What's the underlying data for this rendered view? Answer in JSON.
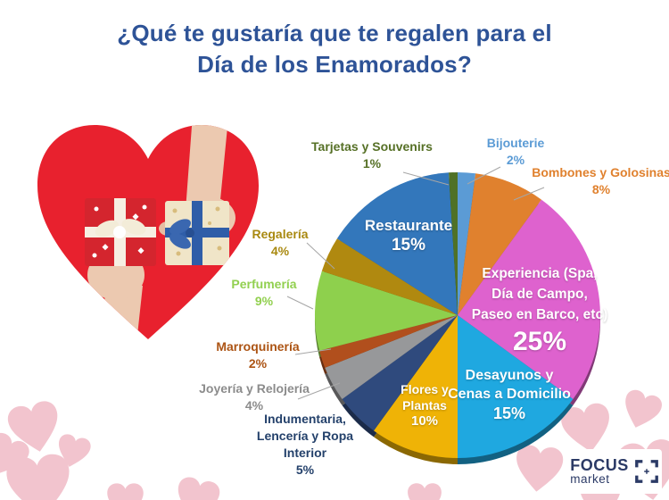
{
  "title": {
    "line1": "¿Qué te gustaría que te regalen para el",
    "line2": "Día de los Enamorados?",
    "color": "#2E5397"
  },
  "chart_data": {
    "type": "pie",
    "title": "¿Qué te gustaría que te regalen para el Día de los Enamorados?",
    "units": "percent",
    "total": 100,
    "start_angle_deg": 0,
    "direction": "clockwise",
    "legend_position": "none",
    "slices": [
      {
        "id": "bijouterie",
        "label": "Bijouterie",
        "value": 2,
        "pct_label": "2%",
        "color": "#5B9BD5",
        "label_color": "#5B9BD5",
        "label_placement": "outside"
      },
      {
        "id": "bombones",
        "label": "Bombones y Golosinas",
        "value": 8,
        "pct_label": "8%",
        "color": "#E0812E",
        "label_color": "#E0812E",
        "label_placement": "outside"
      },
      {
        "id": "experiencia",
        "label": "Experiencia (Spa,\nDía de Campo,\nPaseo en Barco, etc)",
        "value": 25,
        "pct_label": "25%",
        "color": "#DE62CE",
        "label_color": "#FFFFFF",
        "label_placement": "inside"
      },
      {
        "id": "desayunos",
        "label": "Desayunos y\nCenas a Domicilio",
        "value": 15,
        "pct_label": "15%",
        "color": "#1FA8E0",
        "label_color": "#FFFFFF",
        "label_placement": "inside"
      },
      {
        "id": "flores",
        "label": "Flores y\nPlantas",
        "value": 10,
        "pct_label": "10%",
        "color": "#EFB306",
        "label_color": "#FFFFFF",
        "label_placement": "inside"
      },
      {
        "id": "indumentaria",
        "label": "Indumentaria,\nLencería y Ropa\nInterior",
        "value": 5,
        "pct_label": "5%",
        "color": "#2F4A7D",
        "label_color": "#24416B",
        "label_placement": "outside"
      },
      {
        "id": "joyeria",
        "label": "Joyería y Relojería",
        "value": 4,
        "pct_label": "4%",
        "color": "#97989A",
        "label_color": "#8C8C8C",
        "label_placement": "outside"
      },
      {
        "id": "marroquineria",
        "label": "Marroquinería",
        "value": 2,
        "pct_label": "2%",
        "color": "#B14F1D",
        "label_color": "#AC5414",
        "label_placement": "outside"
      },
      {
        "id": "perfumeria",
        "label": "Perfumería",
        "value": 9,
        "pct_label": "9%",
        "color": "#8ED04D",
        "label_color": "#92D050",
        "label_placement": "outside"
      },
      {
        "id": "regaleria",
        "label": "Regalería",
        "value": 4,
        "pct_label": "4%",
        "color": "#B08910",
        "label_color": "#A98910",
        "label_placement": "outside"
      },
      {
        "id": "restaurante",
        "label": "Restaurante",
        "value": 15,
        "pct_label": "15%",
        "color": "#3377BB",
        "label_color": "#FFFFFF",
        "label_placement": "inside"
      },
      {
        "id": "tarjetas",
        "label": "Tarjetas y Souvenirs",
        "value": 1,
        "pct_label": "1%",
        "color": "#4F7126",
        "label_color": "#567026",
        "label_placement": "outside"
      }
    ]
  },
  "logo": {
    "line1": "FOCUS",
    "line2": "market",
    "color": "#2B3A66"
  },
  "decor": {
    "background": "#FFFFFF",
    "heart_red": "#E8212E",
    "heart_pink": "#F2C4CE",
    "leader_line_color": "#A6A6A6"
  }
}
